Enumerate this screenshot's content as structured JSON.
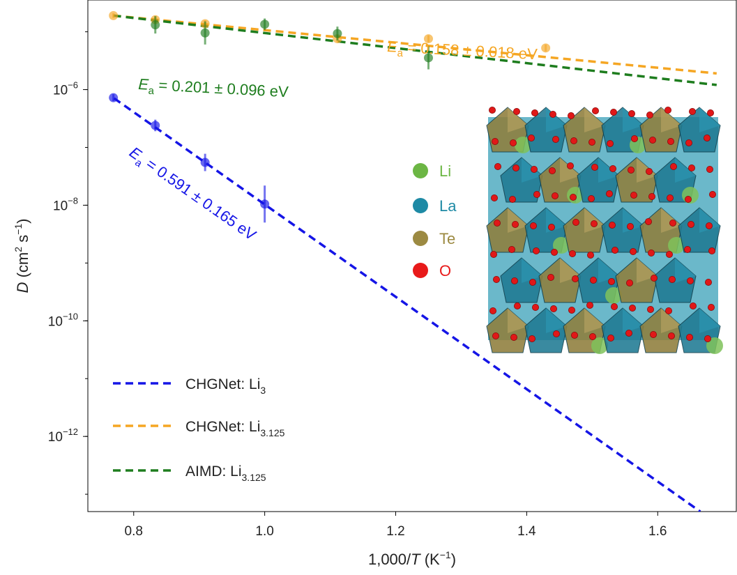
{
  "chart_data": {
    "type": "scatter",
    "title": "",
    "xlabel": {
      "main": "1,000/",
      "italic": "T",
      "unit_open": " (K",
      "unit_sup": "−1",
      "unit_close": ")"
    },
    "ylabel": {
      "italic": "D",
      "unit_open": " (cm",
      "sup1": "2",
      "mid": " s",
      "sup2": "−1",
      "unit_close": ")"
    },
    "xlim": [
      0.73,
      1.72
    ],
    "ylim_log10": [
      -13.3,
      -4.45
    ],
    "xticks": [
      {
        "value": 0.8,
        "label": "0.8"
      },
      {
        "value": 1.0,
        "label": "1.0"
      },
      {
        "value": 1.2,
        "label": "1.2"
      },
      {
        "value": 1.4,
        "label": "1.4"
      },
      {
        "value": 1.6,
        "label": "1.6"
      }
    ],
    "yticks": [
      {
        "exp": -6,
        "base": "10",
        "sup": "−6"
      },
      {
        "exp": -8,
        "base": "10",
        "sup": "−8"
      },
      {
        "exp": -10,
        "base": "10",
        "sup": "−10"
      },
      {
        "exp": -12,
        "base": "10",
        "sup": "−12"
      }
    ],
    "grid": false,
    "series": [
      {
        "name": "CHGNet: Li3",
        "legend_main": "CHGNet: Li",
        "legend_sub": "3",
        "color": "#1515e6",
        "fit": {
          "x": [
            0.77,
            1.665
          ],
          "log10y": [
            -6.15,
            -13.3
          ]
        },
        "points": [
          {
            "x": 0.769,
            "log10y": -6.14,
            "err": 0.06
          },
          {
            "x": 0.833,
            "log10y": -6.62,
            "err": 0.1
          },
          {
            "x": 0.909,
            "log10y": -7.26,
            "err": 0.15
          },
          {
            "x": 1.0,
            "log10y": -7.98,
            "err": 0.32
          }
        ]
      },
      {
        "name": "CHGNet: Li3.125",
        "legend_main": "CHGNet: Li",
        "legend_sub": "3.125",
        "color": "#f5a623",
        "fit": {
          "x": [
            0.769,
            1.69
          ],
          "log10y": [
            -4.72,
            -5.72
          ]
        },
        "points": [
          {
            "x": 0.769,
            "log10y": -4.72,
            "err": 0.04
          },
          {
            "x": 0.833,
            "log10y": -4.79,
            "err": 0.06
          },
          {
            "x": 0.909,
            "log10y": -4.86,
            "err": 0.06
          },
          {
            "x": 1.111,
            "log10y": -5.12,
            "err": 0.06
          },
          {
            "x": 1.25,
            "log10y": -5.12,
            "err": 0.06
          },
          {
            "x": 1.429,
            "log10y": -5.28,
            "err": 0.06
          }
        ]
      },
      {
        "name": "AIMD: Li3.125",
        "legend_main": "AIMD: Li",
        "legend_sub": "3.125",
        "color": "#1e7d1e",
        "fit": {
          "x": [
            0.769,
            1.69
          ],
          "log10y": [
            -4.72,
            -5.92
          ]
        },
        "points": [
          {
            "x": 0.833,
            "log10y": -4.88,
            "err": 0.15
          },
          {
            "x": 0.909,
            "log10y": -5.02,
            "err": 0.2
          },
          {
            "x": 1.0,
            "log10y": -4.87,
            "err": 0.1
          },
          {
            "x": 1.111,
            "log10y": -5.03,
            "err": 0.12
          },
          {
            "x": 1.25,
            "log10y": -5.45,
            "err": 0.2
          }
        ]
      }
    ],
    "annotations": [
      {
        "var": "E",
        "sub": "a",
        "text": " = 0.158 ± 0.018 eV",
        "color": "#f5a623"
      },
      {
        "var": "E",
        "sub": "a",
        "text": " = 0.201 ± 0.096 eV",
        "color": "#1e7d1e"
      },
      {
        "var": "E",
        "sub": "a",
        "text": " = 0.591 ± 0.165 eV",
        "color": "#1515e6"
      }
    ],
    "inset_legend": [
      {
        "label": "Li",
        "color": "#6cb644"
      },
      {
        "label": "La",
        "color": "#1e8aa5"
      },
      {
        "label": "Te",
        "color": "#9c8a42"
      },
      {
        "label": "O",
        "color": "#e81a1a"
      }
    ]
  }
}
